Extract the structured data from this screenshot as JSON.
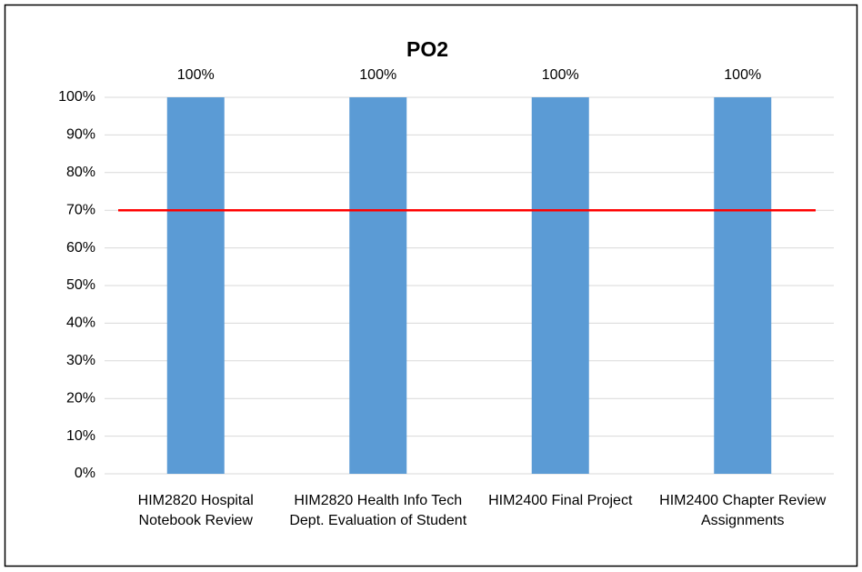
{
  "chart_data": {
    "type": "bar",
    "title": "PO2",
    "categories": [
      "HIM2820 Hospital Notebook Review",
      "HIM2820 Health Info Tech Dept. Evaluation of Student",
      "HIM2400 Final Project",
      "HIM2400 Chapter Review Assignments"
    ],
    "values": [
      100,
      100,
      100,
      100
    ],
    "value_labels": [
      "100%",
      "100%",
      "100%",
      "100%"
    ],
    "color": "#5b9bd5",
    "ylim": [
      0,
      100
    ],
    "yticks": [
      {
        "value": 0,
        "label": "0%"
      },
      {
        "value": 10,
        "label": "10%"
      },
      {
        "value": 20,
        "label": "20%"
      },
      {
        "value": 30,
        "label": "30%"
      },
      {
        "value": 40,
        "label": "40%"
      },
      {
        "value": 50,
        "label": "50%"
      },
      {
        "value": 60,
        "label": "60%"
      },
      {
        "value": 70,
        "label": "70%"
      },
      {
        "value": 80,
        "label": "80%"
      },
      {
        "value": 90,
        "label": "90%"
      },
      {
        "value": 100,
        "label": "100%"
      }
    ],
    "grid": true,
    "reference_line": {
      "value": 70,
      "color": "#ff0000"
    }
  }
}
